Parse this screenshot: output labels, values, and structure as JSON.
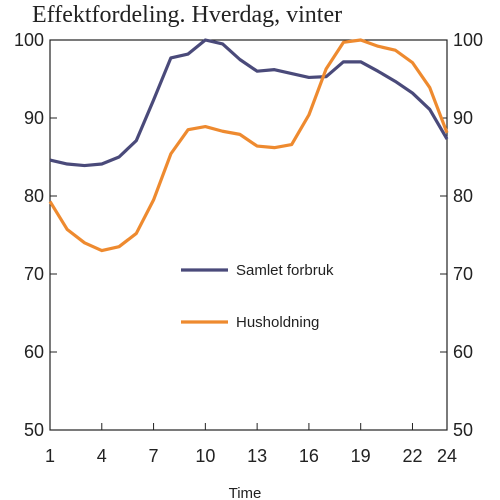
{
  "chart_data": {
    "type": "line",
    "title": "Effektfordeling. Hverdag, vinter",
    "xlabel": "Time",
    "ylabel": "",
    "x": [
      1,
      2,
      3,
      4,
      5,
      6,
      7,
      8,
      9,
      10,
      11,
      12,
      13,
      14,
      15,
      16,
      17,
      18,
      19,
      20,
      21,
      22,
      23,
      24
    ],
    "xticks": [
      1,
      4,
      7,
      10,
      13,
      16,
      19,
      22,
      24
    ],
    "xlim": [
      1,
      24
    ],
    "ylim": [
      50,
      100
    ],
    "yticks": [
      50,
      60,
      70,
      80,
      90,
      100
    ],
    "right_axis_ticks": [
      50,
      60,
      70,
      80,
      90,
      100
    ],
    "grid": false,
    "legend_position": "center",
    "series": [
      {
        "name": "Samlet forbruk",
        "color": "#4a4a7a",
        "values": [
          84.6,
          84.1,
          83.9,
          84.1,
          85.0,
          87.1,
          92.3,
          97.7,
          98.2,
          100.0,
          99.5,
          97.5,
          96.0,
          96.2,
          95.7,
          95.2,
          95.3,
          97.2,
          97.2,
          96.0,
          94.7,
          93.2,
          91.1,
          87.3
        ]
      },
      {
        "name": "Husholdning",
        "color": "#ee8a2f",
        "values": [
          79.3,
          75.7,
          74.0,
          73.0,
          73.5,
          75.2,
          79.5,
          85.4,
          88.5,
          88.9,
          88.3,
          87.9,
          86.4,
          86.2,
          86.6,
          90.4,
          96.3,
          99.7,
          100.0,
          99.2,
          98.7,
          97.1,
          93.9,
          88.1
        ]
      }
    ]
  }
}
